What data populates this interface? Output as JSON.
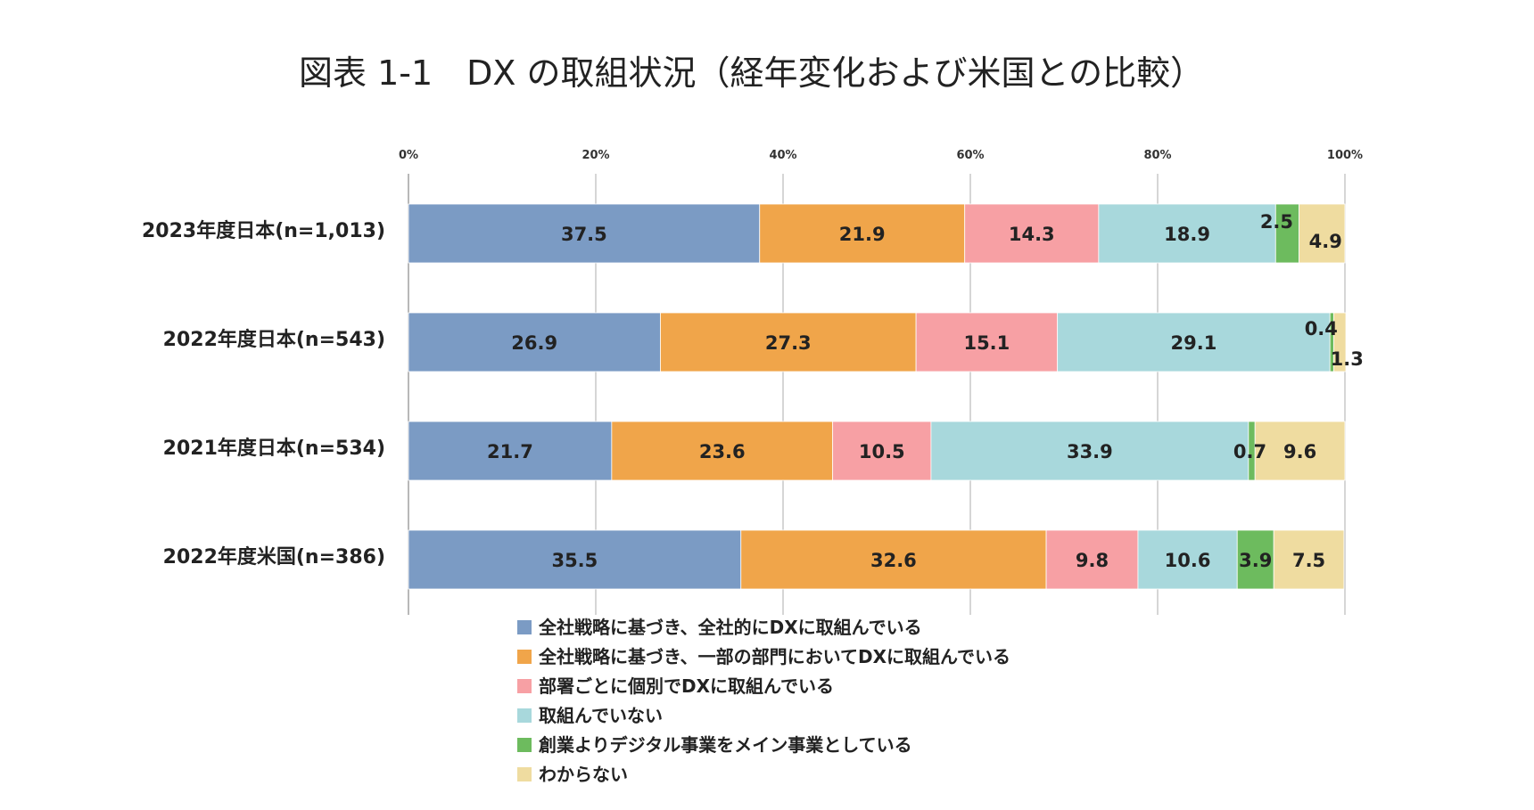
{
  "chart_data": {
    "type": "bar",
    "orientation": "horizontal",
    "stacked": true,
    "title": "図表 1-1　DX の取組状況（経年変化および米国との比較）",
    "xlim": [
      0,
      100
    ],
    "xticks": [
      "0%",
      "20%",
      "40%",
      "60%",
      "80%",
      "100%"
    ],
    "grid": true,
    "legend_position": "bottom",
    "categories": [
      "2023年度日本(n=1,013)",
      "2022年度日本(n=543)",
      "2021年度日本(n=534)",
      "2022年度米国(n=386)"
    ],
    "series": [
      {
        "name": "全社戦略に基づき、全社的にDXに取組んでいる",
        "color": "#7b9bc4",
        "values": [
          37.5,
          26.9,
          21.7,
          35.5
        ]
      },
      {
        "name": "全社戦略に基づき、一部の部門においてDXに取組んでいる",
        "color": "#f0a54a",
        "values": [
          21.9,
          27.3,
          23.6,
          32.6
        ]
      },
      {
        "name": "部署ごとに個別でDXに取組んでいる",
        "color": "#f7a0a4",
        "values": [
          14.3,
          15.1,
          10.5,
          9.8
        ]
      },
      {
        "name": "取組んでいない",
        "color": "#a8d8dc",
        "values": [
          18.9,
          29.1,
          33.9,
          10.6
        ]
      },
      {
        "name": "創業よりデジタル事業をメイン事業としている",
        "color": "#6dbb5e",
        "values": [
          2.5,
          0.4,
          0.7,
          3.9
        ]
      },
      {
        "name": "わからない",
        "color": "#efdca0",
        "values": [
          4.9,
          1.3,
          9.6,
          7.5
        ]
      }
    ],
    "value_labels": [
      [
        "37.5",
        "21.9",
        "14.3",
        "18.9",
        "2.5",
        "4.9"
      ],
      [
        "26.9",
        "27.3",
        "15.1",
        "29.1",
        "0.4",
        "1.3"
      ],
      [
        "21.7",
        "23.6",
        "10.5",
        "33.9",
        "0.7",
        "9.6"
      ],
      [
        "35.5",
        "32.6",
        "9.8",
        "10.6",
        "3.9",
        "7.5"
      ]
    ]
  }
}
